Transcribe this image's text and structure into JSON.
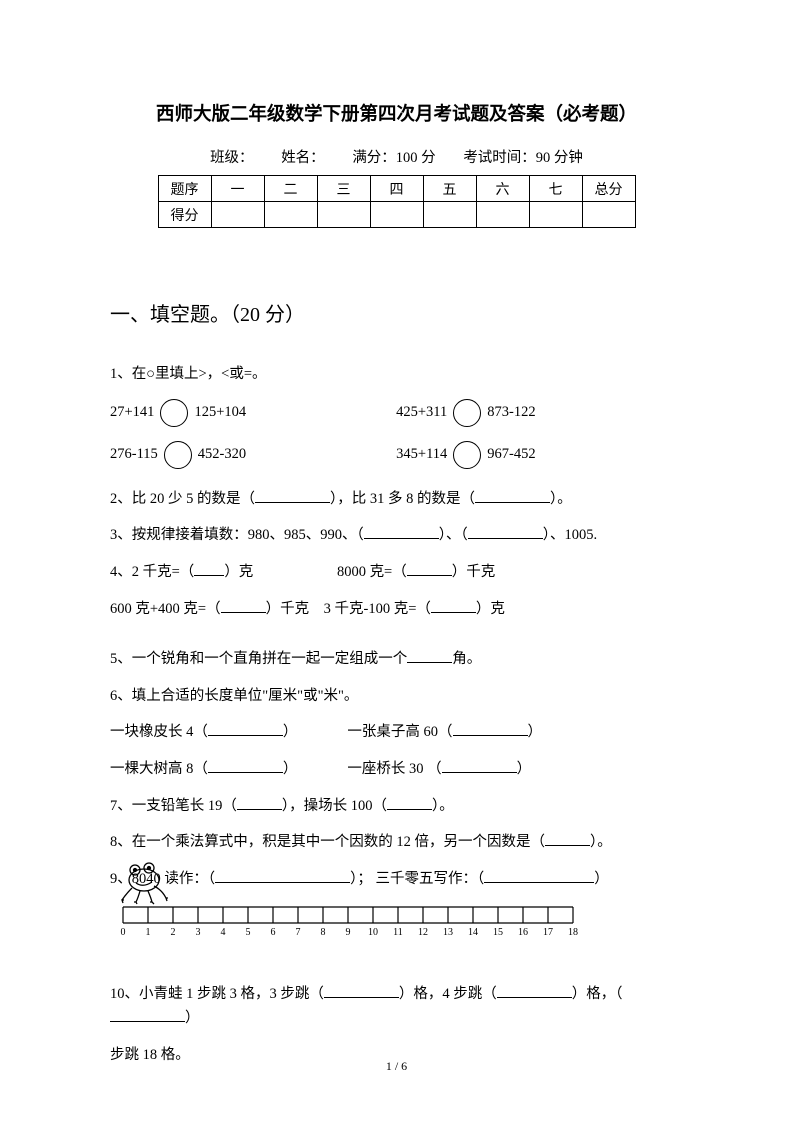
{
  "title": "西师大版二年级数学下册第四次月考试题及答案（必考题）",
  "meta": {
    "class_label": "班级：",
    "name_label": "姓名：",
    "fullmark_label": "满分：100 分",
    "time_label": "考试时间：90 分钟"
  },
  "score_table": {
    "header": [
      "题序",
      "一",
      "二",
      "三",
      "四",
      "五",
      "六",
      "七",
      "总分"
    ],
    "row_label": "得分"
  },
  "section1": {
    "heading": "一、填空题。（20 分）",
    "q1_intro": "1、在○里填上>，<或=。",
    "q1_items": [
      {
        "left": "27+141",
        "right": "125+104"
      },
      {
        "left": "425+311",
        "right": "873-122"
      },
      {
        "left": "276-115",
        "right": "452-320"
      },
      {
        "left": "345+114",
        "right": "967-452"
      }
    ],
    "q2_a": "2、比 20 少 5 的数是（",
    "q2_b": "），比 31 多 8 的数是（",
    "q2_c": "）。",
    "q3_a": "3、按规律接着填数：980、985、990、（",
    "q3_b": "）、（",
    "q3_c": "）、1005.",
    "q4_a": "4、2 千克=（",
    "q4_b": "）克",
    "q4_c": "8000 克=（",
    "q4_d": "）千克",
    "q4_e": "600 克+400 克=（",
    "q4_f": "）千克",
    "q4_g": "3 千克-100 克=（",
    "q4_h": "）克",
    "q5_a": "5、一个锐角和一个直角拼在一起一定组成一个",
    "q5_b": "角。",
    "q6_intro": "6、填上合适的长度单位\"厘米\"或\"米\"。",
    "q6_items": [
      {
        "left": "一块橡皮长 4（",
        "right": "一张桌子高 60（"
      },
      {
        "left": "一棵大树高 8（",
        "right": "一座桥长 30    （"
      }
    ],
    "q7_a": "7、一支铅笔长 19（",
    "q7_b": "），操场长 100（",
    "q7_c": "）。",
    "q8_a": "8、在一个乘法算式中，积是其中一个因数的 12 倍，另一个因数是（",
    "q8_b": "）。",
    "q9_a": "9、8040 读作：（",
    "q9_b": "）；  三千零五写作：（",
    "q9_c": "）",
    "q10_a": "10、小青蛙 1 步跳 3 格，3 步跳（",
    "q10_b": "）格，4 步跳（",
    "q10_c": "）格，（",
    "q10_d": "）",
    "q10_e": "步跳 18 格。",
    "ruler_max": 18
  },
  "pagenum": "1  /  6",
  "colors": {
    "text": "#000000",
    "bg": "#ffffff",
    "border": "#000000"
  }
}
